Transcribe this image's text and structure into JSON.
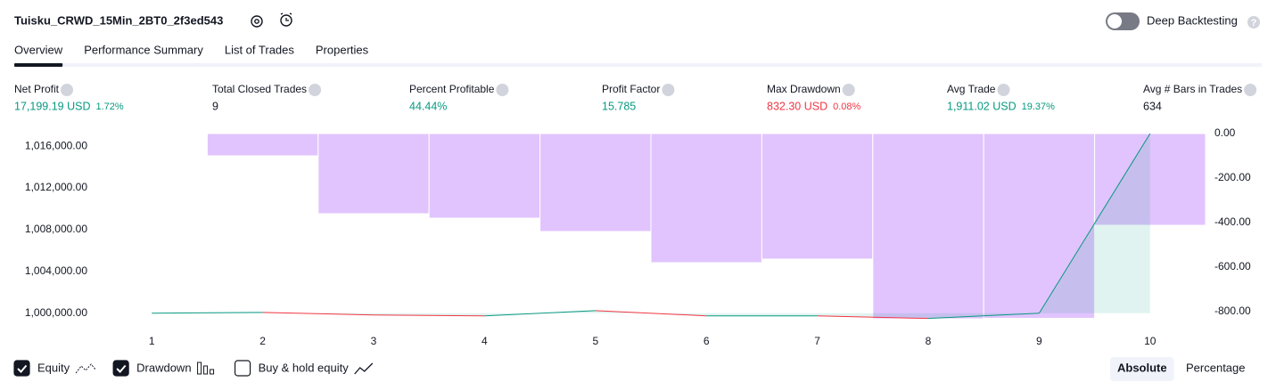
{
  "header": {
    "title": "Tuisku_CRWD_15Min_2BT0_2f3ed543",
    "deep_backtesting": "Deep Backtesting"
  },
  "tabs": [
    "Overview",
    "Performance Summary",
    "List of Trades",
    "Properties"
  ],
  "active_tab": 0,
  "metrics": [
    {
      "label": "Net Profit",
      "value": "17,199.19 USD",
      "percent": "1.72%",
      "color": "#089981"
    },
    {
      "label": "Total Closed Trades",
      "value": "9",
      "color": "#131722"
    },
    {
      "label": "Percent Profitable",
      "value": "44.44%",
      "color": "#089981"
    },
    {
      "label": "Profit Factor",
      "value": "15.785",
      "color": "#089981"
    },
    {
      "label": "Max Drawdown",
      "value": "832.30 USD",
      "percent": "0.08%",
      "color": "#f23645"
    },
    {
      "label": "Avg Trade",
      "value": "1,911.02 USD",
      "percent": "19.37%",
      "color": "#089981"
    },
    {
      "label": "Avg # Bars in Trades",
      "value": "634",
      "color": "#131722"
    }
  ],
  "chart_data": {
    "type": "combo",
    "categories": [
      "1",
      "2",
      "3",
      "4",
      "5",
      "6",
      "7",
      "8",
      "9",
      "10"
    ],
    "series": [
      {
        "name": "Equity",
        "type": "line",
        "visible": true,
        "color": "#089981",
        "down_color": "#f23645",
        "values": [
          1000000,
          1000080,
          999830,
          999750,
          1000250,
          999750,
          999750,
          999500,
          1000000,
          1017199.19
        ]
      },
      {
        "name": "Drawdown",
        "type": "bar",
        "axis": "y2",
        "visible": true,
        "color": "#e1c4fd",
        "values": [
          -3,
          -100,
          -360,
          -380,
          -440,
          -580,
          -564,
          -832.3,
          -830,
          -412
        ]
      }
    ],
    "ylim": [
      999300,
      1017200
    ],
    "yticks": [
      {
        "value": 1000000,
        "label": "1,000,000.00"
      },
      {
        "value": 1004000,
        "label": "1,004,000.00"
      },
      {
        "value": 1008000,
        "label": "1,008,000.00"
      },
      {
        "value": 1012000,
        "label": "1,012,000.00"
      },
      {
        "value": 1016000,
        "label": "1,016,000.00"
      }
    ],
    "y2lim": [
      -840,
      0
    ],
    "y2ticks": [
      {
        "value": 0,
        "label": "0.00"
      },
      {
        "value": -200,
        "label": "-200.00"
      },
      {
        "value": -400,
        "label": "-400.00"
      },
      {
        "value": -600,
        "label": "-600.00"
      },
      {
        "value": -800,
        "label": "-800.00"
      }
    ]
  },
  "footer": {
    "toggles": [
      {
        "label": "Buy & hold equity",
        "checked": false
      }
    ],
    "modes": [
      "Absolute",
      "Percentage"
    ],
    "active_mode": 0
  }
}
